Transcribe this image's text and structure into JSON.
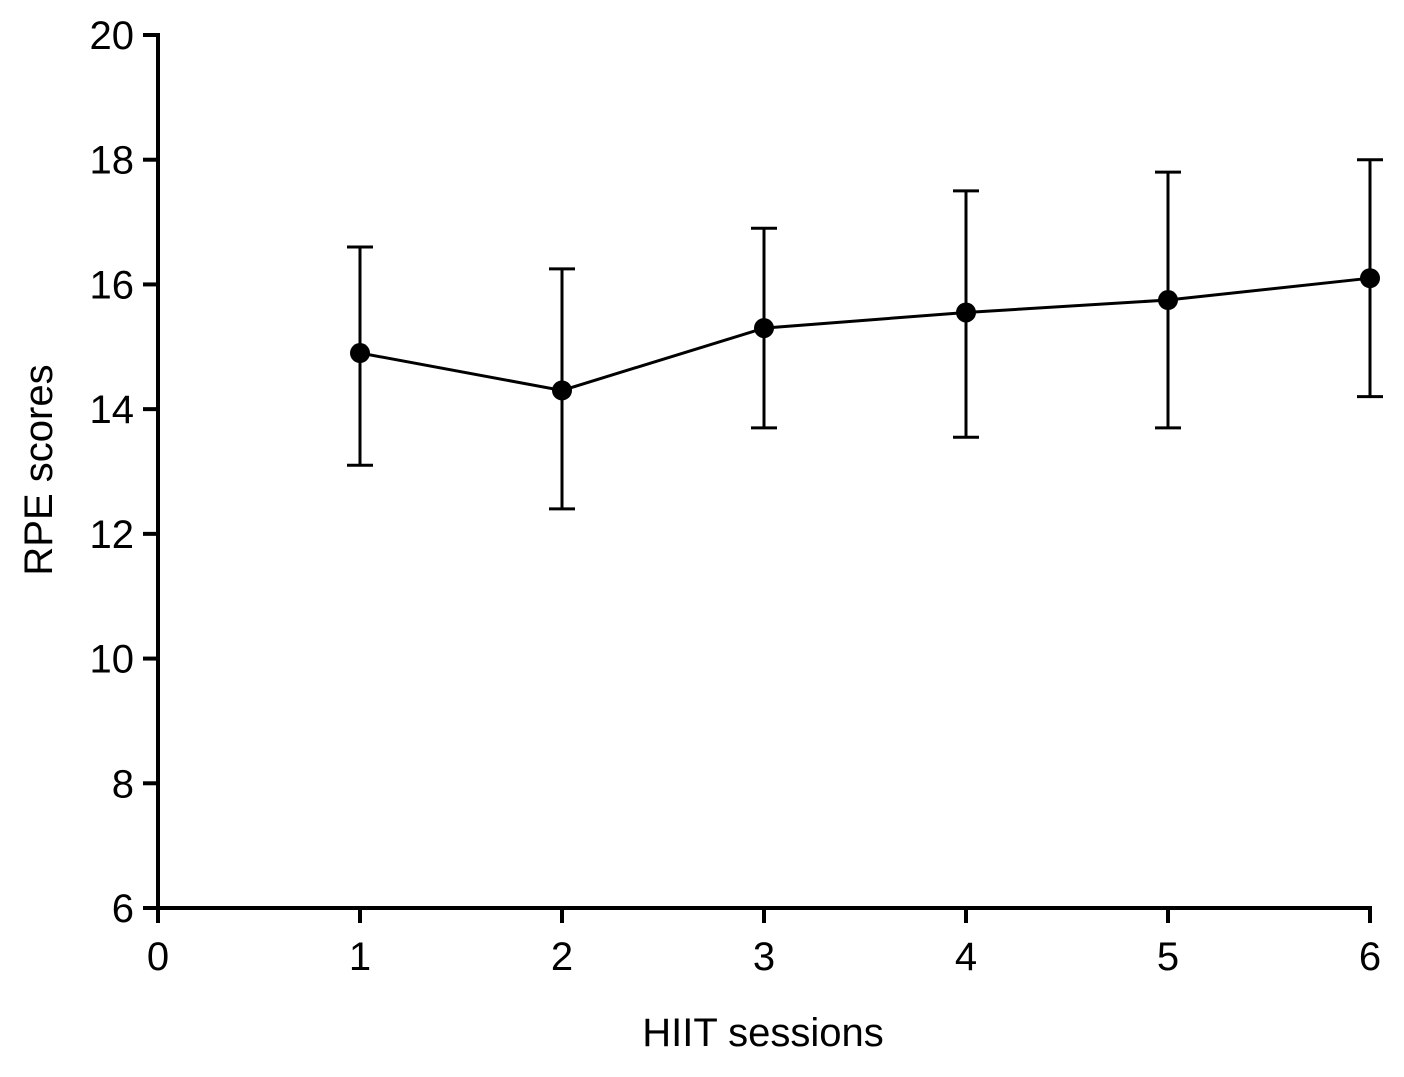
{
  "chart_data": {
    "type": "line",
    "title": "",
    "xlabel": "HIIT sessions",
    "ylabel": "RPE scores",
    "x": [
      1,
      2,
      3,
      4,
      5,
      6
    ],
    "series": [
      {
        "name": "RPE",
        "values": [
          14.9,
          14.3,
          15.3,
          15.55,
          15.75,
          16.1
        ],
        "error_upper": [
          16.6,
          16.25,
          16.9,
          17.5,
          17.8,
          18.0
        ],
        "error_lower": [
          13.1,
          12.4,
          13.7,
          13.55,
          13.7,
          14.2
        ]
      }
    ],
    "xlim": [
      0,
      6
    ],
    "ylim": [
      6,
      20
    ],
    "x_ticks": [
      0,
      1,
      2,
      3,
      4,
      5,
      6
    ],
    "y_ticks": [
      6,
      8,
      10,
      12,
      14,
      16,
      18,
      20
    ],
    "grid": false,
    "legend": "none",
    "marker": "filled-circle",
    "line_color": "#000000",
    "marker_color": "#000000",
    "background_color": "#ffffff"
  }
}
